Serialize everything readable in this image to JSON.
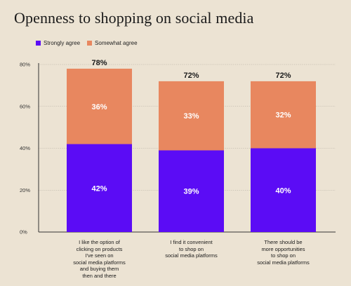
{
  "title": "Openness to shopping on social media",
  "colors": {
    "strongly": "#5b0cf5",
    "somewhat": "#e8875f",
    "axis": "#333333",
    "grid": "#a9a398",
    "bg": "#ece3d3"
  },
  "legend": {
    "strongly_label": "Strongly agree",
    "somewhat_label": "Somewhat agree"
  },
  "chart_data": {
    "type": "bar",
    "stacked": true,
    "title": "Openness to shopping on social media",
    "categories": [
      [
        "I like the option of",
        "clicking on products",
        "I've seen on",
        "social media platforms",
        "and buying them",
        "then and there"
      ],
      [
        "I find it convenient",
        "to shop on",
        "social media platforms"
      ],
      [
        "There should be",
        "more opportunities",
        "to shop on",
        "social media platforms"
      ]
    ],
    "series": [
      {
        "name": "Strongly agree",
        "values": [
          42,
          39,
          40
        ],
        "labels": [
          "42%",
          "39%",
          "40%"
        ]
      },
      {
        "name": "Somewhat agree",
        "values": [
          36,
          33,
          32
        ],
        "labels": [
          "36%",
          "33%",
          "32%"
        ]
      }
    ],
    "totals": [
      78,
      72,
      72
    ],
    "total_labels": [
      "78%",
      "72%",
      "72%"
    ],
    "yticks": [
      0,
      20,
      40,
      60,
      80
    ],
    "ytick_labels": [
      "0%",
      "20%",
      "40%",
      "60%",
      "80%"
    ],
    "ylim": [
      0,
      80
    ],
    "grid": true,
    "legend_position": "top-left"
  }
}
